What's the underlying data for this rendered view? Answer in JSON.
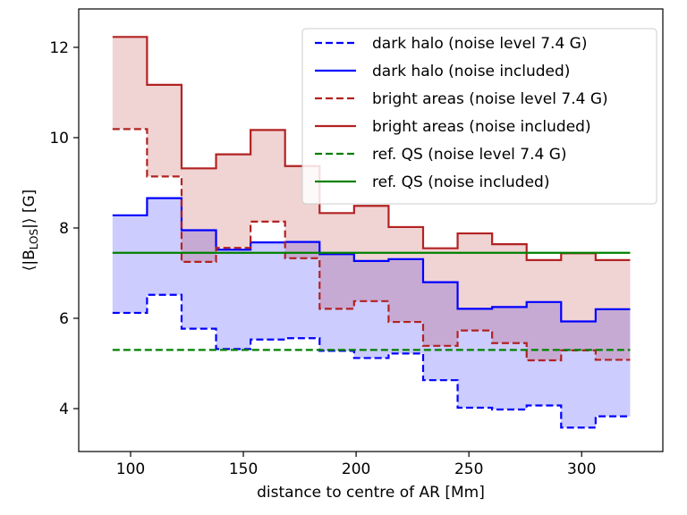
{
  "chart_data": {
    "type": "line",
    "xlabel": "distance to centre of AR [Mm]",
    "ylabel": "⟨|B",
    "ylabel_sub": "LOS",
    "ylabel_tail": "|⟩ [G]",
    "xlim": [
      77,
      336
    ],
    "ylim": [
      3.05,
      12.85
    ],
    "xticks": [
      100,
      150,
      200,
      250,
      300
    ],
    "yticks": [
      4,
      6,
      8,
      10,
      12
    ],
    "bin_edges": [
      92,
      107.3,
      122.6,
      137.9,
      153.2,
      168.5,
      183.8,
      199.1,
      214.4,
      229.7,
      245,
      260.3,
      275.6,
      290.9,
      306.2,
      321.5
    ],
    "series": [
      {
        "name": "dark halo (noise level 7.4 G)",
        "color": "#0000ff",
        "style": "dashed",
        "values": [
          6.12,
          6.52,
          5.77,
          5.32,
          5.53,
          5.56,
          5.28,
          5.12,
          5.22,
          4.63,
          4.02,
          3.98,
          4.07,
          3.58,
          3.83
        ]
      },
      {
        "name": "dark halo (noise included)",
        "color": "#0000ff",
        "style": "solid",
        "values": [
          8.28,
          8.66,
          7.95,
          7.52,
          7.68,
          7.69,
          7.42,
          7.27,
          7.31,
          6.8,
          6.21,
          6.25,
          6.36,
          5.93,
          6.2
        ]
      },
      {
        "name": "bright areas (noise level 7.4 G)",
        "color": "#b22222",
        "style": "dashed",
        "values": [
          10.19,
          9.14,
          7.25,
          7.56,
          8.14,
          7.33,
          6.21,
          6.38,
          5.92,
          5.39,
          5.73,
          5.45,
          5.07,
          5.29,
          5.08
        ]
      },
      {
        "name": "bright areas (noise included)",
        "color": "#b22222",
        "style": "solid",
        "values": [
          12.23,
          11.17,
          9.32,
          9.63,
          10.17,
          9.37,
          8.33,
          8.49,
          8.02,
          7.55,
          7.88,
          7.64,
          7.29,
          7.44,
          7.29
        ]
      },
      {
        "name": "ref. QS (noise level 7.4 G)",
        "color": "#008000",
        "style": "dashed",
        "constant": 5.3
      },
      {
        "name": "ref. QS (noise included)",
        "color": "#008000",
        "style": "solid",
        "constant": 7.45
      }
    ],
    "fills": [
      {
        "between": [
          "dark halo (noise level 7.4 G)",
          "dark halo (noise included)"
        ],
        "color": "#0000ff",
        "opacity": 0.2
      },
      {
        "between": [
          "bright areas (noise level 7.4 G)",
          "bright areas (noise included)"
        ],
        "color": "#b22222",
        "opacity": 0.2
      }
    ],
    "legend_position": "upper-right"
  }
}
